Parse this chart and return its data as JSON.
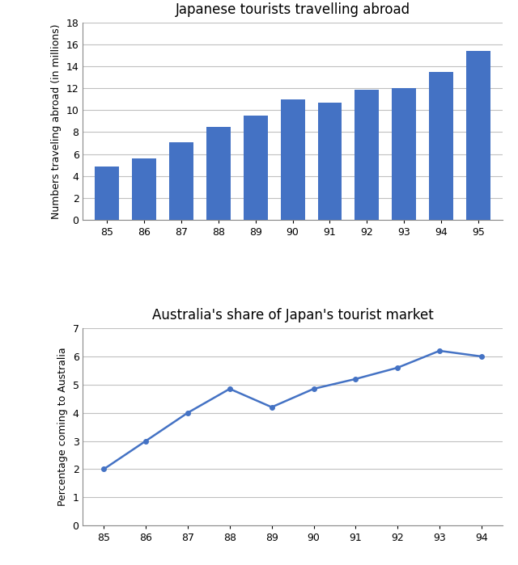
{
  "bar_years": [
    "85",
    "86",
    "87",
    "88",
    "89",
    "90",
    "91",
    "92",
    "93",
    "94",
    "95"
  ],
  "bar_values": [
    4.9,
    5.6,
    7.1,
    8.5,
    9.5,
    11.0,
    10.7,
    11.9,
    12.0,
    13.5,
    15.4
  ],
  "bar_color": "#4472C4",
  "bar_title": "Japanese tourists travelling abroad",
  "bar_ylabel": "Numbers traveling abroad (in millions)",
  "bar_ylim": [
    0,
    18
  ],
  "bar_yticks": [
    0,
    2,
    4,
    6,
    8,
    10,
    12,
    14,
    16,
    18
  ],
  "line_years": [
    "85",
    "86",
    "87",
    "88",
    "89",
    "90",
    "91",
    "92",
    "93",
    "94"
  ],
  "line_values": [
    2.0,
    3.0,
    4.0,
    4.85,
    4.2,
    4.85,
    5.2,
    5.6,
    6.2,
    6.0
  ],
  "line_color": "#4472C4",
  "line_title": "Australia's share of Japan's tourist market",
  "line_ylabel": "Percentage coming to Australia",
  "line_ylim": [
    0,
    7
  ],
  "line_yticks": [
    0,
    1,
    2,
    3,
    4,
    5,
    6,
    7
  ],
  "background_color": "#FFFFFF",
  "grid_color": "#C0C0C0",
  "title_fontsize": 12,
  "label_fontsize": 9,
  "tick_fontsize": 9
}
